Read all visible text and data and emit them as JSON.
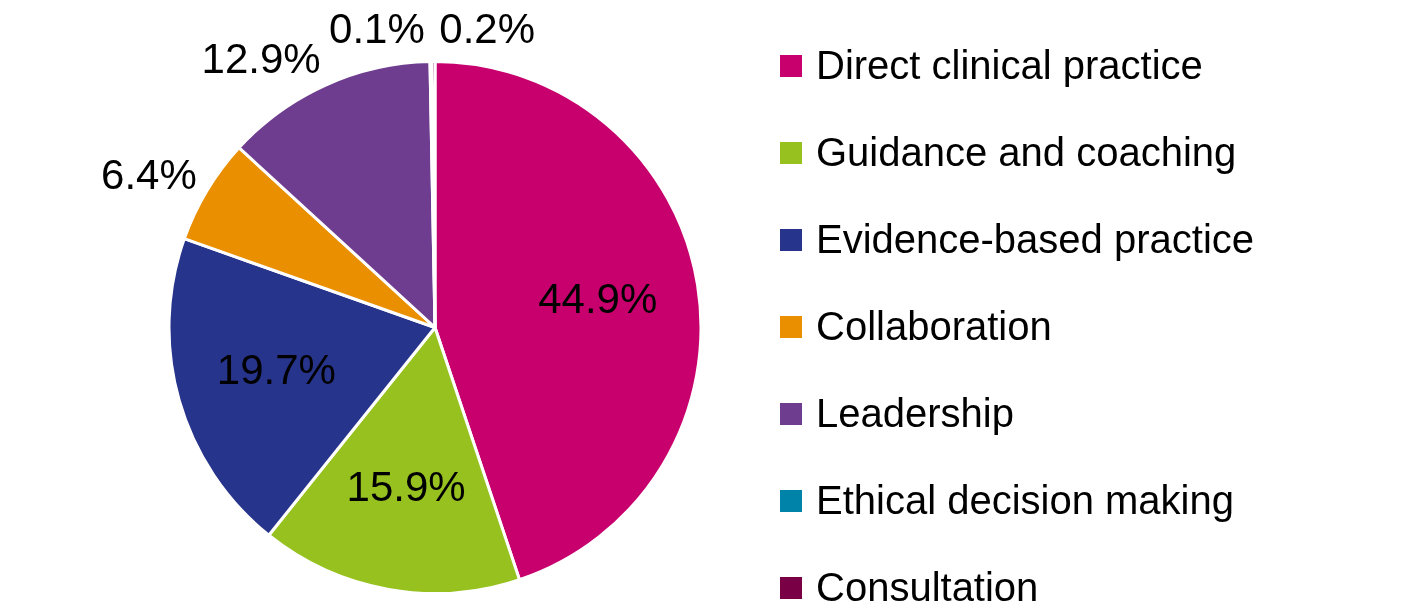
{
  "chart_data": {
    "type": "pie",
    "categories": [
      "Direct clinical practice",
      "Guidance and coaching",
      "Evidence-based practice",
      "Collaboration",
      "Leadership",
      "Ethical decision making",
      "Consultation"
    ],
    "values": [
      44.9,
      15.9,
      19.7,
      6.4,
      12.9,
      0.1,
      0.2
    ],
    "value_labels": [
      "44.9%",
      "15.9%",
      "19.7%",
      "6.4%",
      "12.9%",
      "0.1%",
      "0.2%"
    ],
    "colors": [
      "#c8006e",
      "#96c11f",
      "#27348b",
      "#e98f00",
      "#6f3d8f",
      "#0083a9",
      "#7a0046"
    ],
    "legend": "right"
  }
}
